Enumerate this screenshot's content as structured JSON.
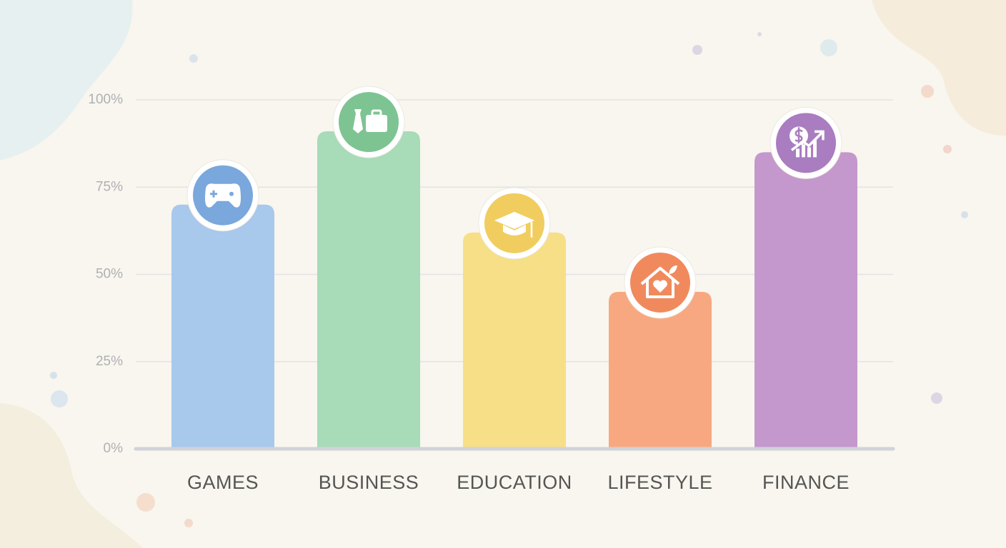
{
  "chart_data": {
    "type": "bar",
    "categories": [
      "GAMES",
      "BUSINESS",
      "EDUCATION",
      "LIFESTYLE",
      "FINANCE"
    ],
    "values": [
      70,
      91,
      62,
      45,
      85
    ],
    "colors": [
      "#a8c8ec",
      "#a8dbb8",
      "#f6df86",
      "#f8a880",
      "#c498cc"
    ],
    "ylim": [
      0,
      100
    ],
    "yticks": [
      {
        "value": 0,
        "label": "0%"
      },
      {
        "value": 25,
        "label": "25%"
      },
      {
        "value": 50,
        "label": "50%"
      },
      {
        "value": 75,
        "label": "75%"
      },
      {
        "value": 100,
        "label": "100%"
      }
    ],
    "grid": true
  }
}
